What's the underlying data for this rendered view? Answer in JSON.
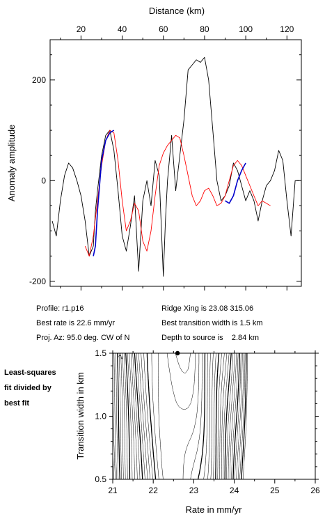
{
  "info": {
    "profile": "Profile: r1.p16",
    "ridge": "Ridge Xing is 23.08 315.06",
    "best_rate": "Best rate is 22.6 mm/yr",
    "best_width": "Best transition width is 1.5 km",
    "proj": "Proj. Az: 95.0 deg. CW of N",
    "depth": "Depth to source is    2.84 km"
  },
  "side_label": [
    "Least-squares",
    "fit divided by",
    "best fit"
  ],
  "chart_data": [
    {
      "type": "line",
      "xlabel": "Distance (km)",
      "ylabel": "Anomaly amplitude",
      "xlim": [
        5,
        127
      ],
      "ylim": [
        -210,
        280
      ],
      "xticks": [
        20,
        40,
        60,
        80,
        100,
        120
      ],
      "yticks": [
        -200,
        0,
        200
      ],
      "colors": {
        "observed": "#000000",
        "model": "#ff0000",
        "fit_segment": "#0000cc"
      },
      "series": [
        {
          "id": "observed",
          "x": [
            6,
            8,
            10,
            12,
            14,
            16,
            18,
            20,
            22,
            24,
            26,
            27,
            28,
            30,
            32,
            34,
            36,
            38,
            40,
            42,
            44,
            46,
            48,
            50,
            52,
            54,
            56,
            58,
            60,
            61,
            62,
            64,
            66,
            68,
            70,
            72,
            74,
            76,
            78,
            80,
            82,
            84,
            86,
            88,
            90,
            92,
            94,
            96,
            98,
            100,
            102,
            104,
            106,
            108,
            110,
            112,
            114,
            116,
            118,
            120,
            122,
            124,
            126
          ],
          "y": [
            -80,
            -110,
            -40,
            10,
            35,
            25,
            0,
            -30,
            -80,
            -150,
            -130,
            -60,
            -20,
            50,
            90,
            100,
            60,
            -20,
            -110,
            -140,
            -90,
            -30,
            -180,
            -40,
            0,
            -50,
            40,
            10,
            -190,
            -80,
            0,
            90,
            -20,
            50,
            120,
            220,
            230,
            240,
            235,
            245,
            200,
            100,
            0,
            -40,
            -30,
            -10,
            35,
            20,
            -10,
            -40,
            -20,
            -40,
            -80,
            -40,
            -10,
            0,
            20,
            60,
            40,
            -40,
            -110,
            0,
            0
          ]
        },
        {
          "id": "model",
          "x": [
            22,
            24,
            26,
            28,
            30,
            32,
            34,
            36,
            38,
            40,
            42,
            44,
            46,
            48,
            50,
            52,
            54,
            56,
            58,
            60,
            62,
            64,
            66,
            68,
            70,
            72,
            74,
            76,
            78,
            80,
            82,
            84,
            86,
            88,
            90,
            92,
            94,
            96,
            98,
            100,
            102,
            104,
            106,
            108,
            110,
            112
          ],
          "y": [
            -130,
            -150,
            -110,
            -40,
            30,
            80,
            100,
            95,
            40,
            -40,
            -100,
            -80,
            -45,
            -60,
            -120,
            -140,
            -100,
            -30,
            30,
            55,
            70,
            80,
            90,
            85,
            50,
            10,
            -30,
            -50,
            -40,
            -20,
            -15,
            -30,
            -50,
            -45,
            -30,
            0,
            30,
            40,
            30,
            10,
            -10,
            -30,
            -50,
            -40,
            -45,
            -50
          ]
        },
        {
          "id": "fit_segment_1",
          "x": [
            26,
            27,
            28,
            30,
            32,
            34,
            36
          ],
          "y": [
            -150,
            -130,
            -60,
            40,
            80,
            95,
            100
          ]
        },
        {
          "id": "fit_segment_2",
          "x": [
            90,
            92,
            94,
            96,
            98,
            100
          ],
          "y": [
            -40,
            -45,
            -30,
            0,
            20,
            35
          ]
        }
      ]
    },
    {
      "type": "contour",
      "xlabel": "Rate in mm/yr",
      "ylabel": "Transition width in km",
      "xlim": [
        21,
        26
      ],
      "ylim": [
        0.5,
        1.5
      ],
      "xticks": [
        21,
        22,
        23,
        24,
        25,
        26
      ],
      "yticks": [
        0.5,
        1.0,
        1.5
      ],
      "best_fit": {
        "rate": 22.6,
        "width": 1.5
      },
      "contour_label": "2"
    }
  ]
}
